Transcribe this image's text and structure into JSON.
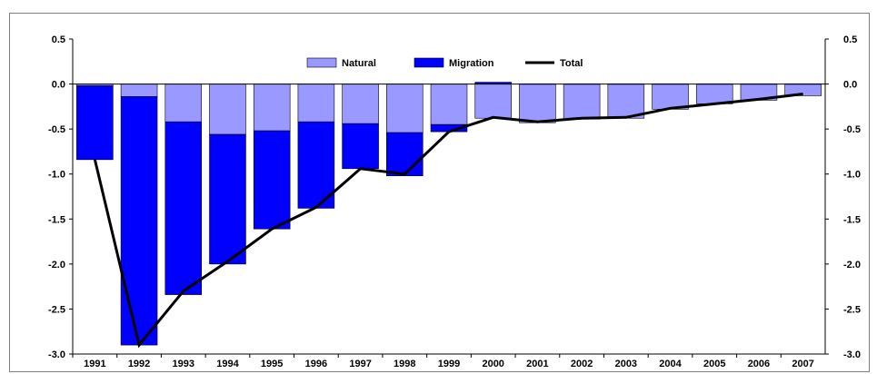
{
  "chart_data": {
    "type": "bar",
    "stacked": true,
    "categories": [
      "1991",
      "1992",
      "1993",
      "1994",
      "1995",
      "1996",
      "1997",
      "1998",
      "1999",
      "2000",
      "2001",
      "2002",
      "2003",
      "2004",
      "2005",
      "2006",
      "2007"
    ],
    "series": [
      {
        "name": "Natural",
        "kind": "bar",
        "color": "#9999ff",
        "values": [
          -0.02,
          -0.14,
          -0.42,
          -0.56,
          -0.52,
          -0.42,
          -0.44,
          -0.54,
          -0.45,
          -0.38,
          -0.43,
          -0.39,
          -0.38,
          -0.28,
          -0.22,
          -0.18,
          -0.13
        ]
      },
      {
        "name": "Migration",
        "kind": "bar",
        "color": "#0000ff",
        "values": [
          -0.82,
          -2.76,
          -1.92,
          -1.44,
          -1.09,
          -0.96,
          -0.5,
          -0.48,
          -0.08,
          0.02,
          0.0,
          0.0,
          0.0,
          0.0,
          0.0,
          0.0,
          0.0
        ]
      },
      {
        "name": "Total",
        "kind": "line",
        "color": "#000000",
        "values": [
          -0.84,
          -2.9,
          -2.3,
          -1.97,
          -1.61,
          -1.37,
          -0.94,
          -1.0,
          -0.53,
          -0.37,
          -0.42,
          -0.38,
          -0.37,
          -0.27,
          -0.22,
          -0.17,
          -0.11
        ]
      }
    ],
    "ylim": [
      -3.0,
      0.5
    ],
    "yticks": [
      "0.5",
      "0.0",
      "-0.5",
      "-1.0",
      "-1.5",
      "-2.0",
      "-2.5",
      "-3.0"
    ],
    "ytick_values": [
      0.5,
      0.0,
      -0.5,
      -1.0,
      -1.5,
      -2.0,
      -2.5,
      -3.0
    ],
    "legend_position": "top-right",
    "grid": false,
    "axis_color": "#000000"
  }
}
